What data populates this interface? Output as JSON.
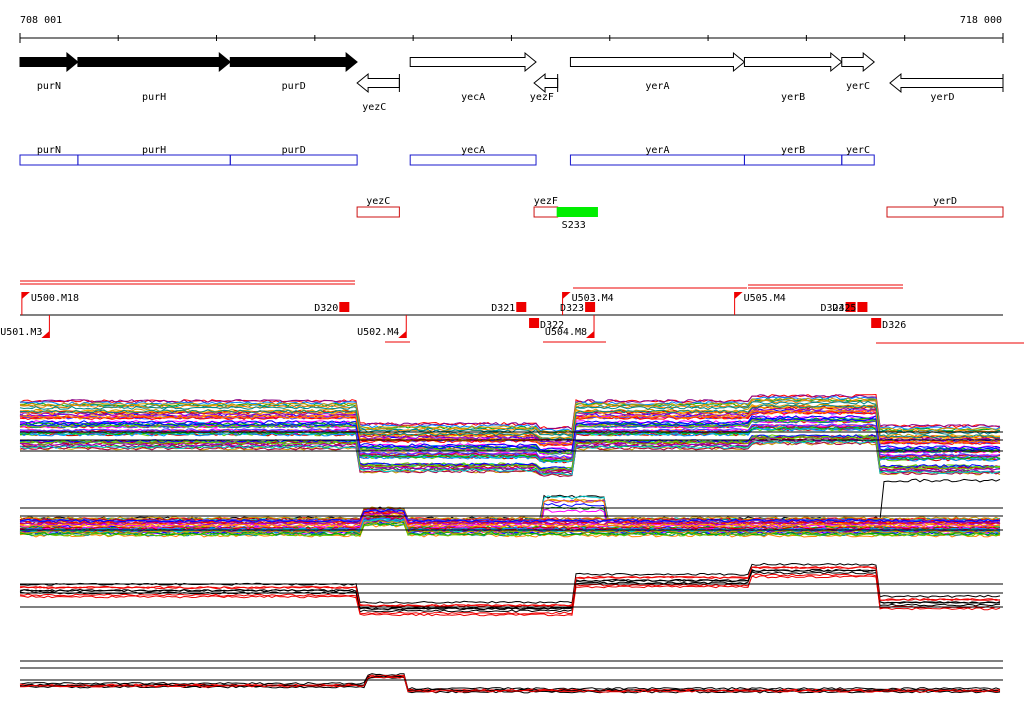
{
  "axis": {
    "start_label": "708 001",
    "end_label": "718 000",
    "start": 708001,
    "end": 718000
  },
  "genes_top": [
    {
      "name": "purN",
      "x1": 708001,
      "x2": 708590,
      "strand": "+",
      "filled": true,
      "label_row": 0
    },
    {
      "name": "purH",
      "x1": 708590,
      "x2": 710140,
      "strand": "+",
      "filled": true,
      "label_row": 1
    },
    {
      "name": "purD",
      "x1": 710140,
      "x2": 711430,
      "strand": "+",
      "filled": true,
      "label_row": 0
    },
    {
      "name": "yezC",
      "x1": 711430,
      "x2": 711860,
      "strand": "-",
      "filled": false,
      "label_row": 2
    },
    {
      "name": "yecA",
      "x1": 711970,
      "x2": 713250,
      "strand": "+",
      "filled": false,
      "label_row": 1
    },
    {
      "name": "yezF",
      "x1": 713230,
      "x2": 713470,
      "strand": "-",
      "filled": false,
      "label_row": 1
    },
    {
      "name": "yerA",
      "x1": 713600,
      "x2": 715370,
      "strand": "+",
      "filled": false,
      "label_row": 0
    },
    {
      "name": "yerB",
      "x1": 715370,
      "x2": 716360,
      "strand": "+",
      "filled": false,
      "label_row": 1
    },
    {
      "name": "yerC",
      "x1": 716360,
      "x2": 716690,
      "strand": "+",
      "filled": false,
      "label_row": 0
    },
    {
      "name": "yerD",
      "x1": 716850,
      "x2": 718000,
      "strand": "-",
      "filled": false,
      "label_row": 1
    }
  ],
  "boxes_plus": [
    "purN",
    "purH",
    "purD",
    "yecA",
    "yerA",
    "yerB",
    "yerC"
  ],
  "boxes_minus": [
    "yezC",
    "yezF",
    "yerD"
  ],
  "s_feature": {
    "name": "S233",
    "x1": 713460,
    "x2": 713880,
    "color": "#00ee00"
  },
  "upstream_sites": [
    {
      "name": "U500.M18",
      "x": 708020,
      "side": "above"
    },
    {
      "name": "U501.M3",
      "x": 708300,
      "side": "below"
    },
    {
      "name": "U502.M4",
      "x": 711930,
      "side": "below"
    },
    {
      "name": "U503.M4",
      "x": 713520,
      "side": "above"
    },
    {
      "name": "U504.M8",
      "x": 713840,
      "side": "below"
    },
    {
      "name": "U505.M4",
      "x": 715270,
      "side": "above"
    }
  ],
  "downstream_sites": [
    {
      "name": "D320",
      "x": 711300,
      "side": "above"
    },
    {
      "name": "D321",
      "x": 713100,
      "side": "above"
    },
    {
      "name": "D322",
      "x": 713230,
      "side": "below"
    },
    {
      "name": "D323",
      "x": 713800,
      "side": "above"
    },
    {
      "name": "D324",
      "x": 716450,
      "side": "above"
    },
    {
      "name": "D325",
      "x": 716570,
      "side": "above"
    },
    {
      "name": "D326",
      "x": 716710,
      "side": "below"
    }
  ],
  "colors": {
    "plus_strand": "#1a1acc",
    "minus_strand": "#cc1111",
    "site": "#ee0000",
    "axis": "#000000"
  }
}
